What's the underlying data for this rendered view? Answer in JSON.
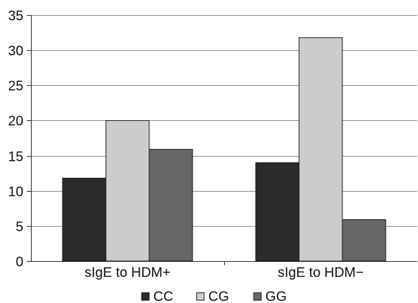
{
  "chart_data": {
    "type": "bar",
    "title": "",
    "xlabel": "",
    "ylabel": "",
    "ylim": [
      0,
      35
    ],
    "yticks": [
      0,
      5,
      10,
      15,
      20,
      25,
      30,
      35
    ],
    "grid": true,
    "legend_position": "bottom",
    "categories": [
      "sIgE to HDM+",
      "sIgE to HDM−"
    ],
    "series": [
      {
        "name": "CC",
        "values": [
          11.8,
          14
        ],
        "color": "#2b2b2b"
      },
      {
        "name": "CG",
        "values": [
          20,
          31.8
        ],
        "color": "#cccccc"
      },
      {
        "name": "GG",
        "values": [
          15.9,
          5.9
        ],
        "color": "#676767"
      }
    ]
  }
}
